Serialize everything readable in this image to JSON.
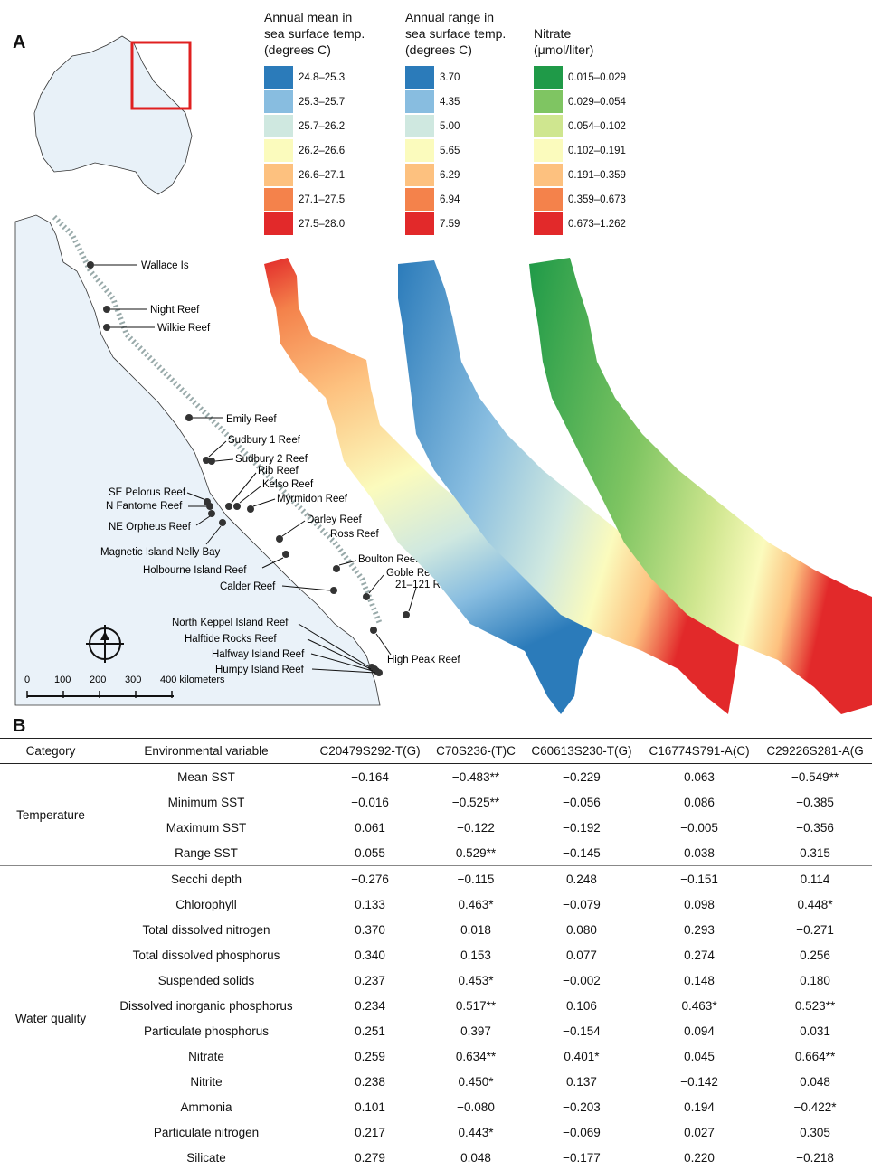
{
  "panel_a": {
    "label": "A",
    "legends": [
      {
        "title": "Annual mean in\nsea surface temp.\n(degrees C)",
        "items": [
          "24.8–25.3",
          "25.3–25.7",
          "25.7–26.2",
          "26.2–26.6",
          "26.6–27.1",
          "27.1–27.5",
          "27.5–28.0"
        ],
        "colors": [
          "#2b7bba",
          "#88bde0",
          "#cfe8e0",
          "#fbfbbd",
          "#fdc17f",
          "#f4824b",
          "#e2292a"
        ]
      },
      {
        "title": "Annual range in\nsea surface temp.\n(degrees C)",
        "items": [
          "3.70",
          "4.35",
          "5.00",
          "5.65",
          "6.29",
          "6.94",
          "7.59"
        ],
        "colors": [
          "#2b7bba",
          "#88bde0",
          "#cfe8e0",
          "#fbfbbd",
          "#fdc17f",
          "#f4824b",
          "#e2292a"
        ]
      },
      {
        "title": "Nitrate\n(μmol/liter)",
        "items": [
          "0.015–0.029",
          "0.029–0.054",
          "0.054–0.102",
          "0.102–0.191",
          "0.191–0.359",
          "0.359–0.673",
          "0.673–1.262"
        ],
        "colors": [
          "#1f9a48",
          "#7fc562",
          "#cfe68f",
          "#fbfbbd",
          "#fdc17f",
          "#f4824b",
          "#e2292a"
        ]
      }
    ],
    "reefs": [
      "Wallace Is",
      "Night Reef",
      "Wilkie Reef",
      "Emily Reef",
      "Sudbury 1 Reef",
      "Sudbury 2 Reef",
      "Rib Reef",
      "Kelso Reef",
      "SE Pelorus Reef",
      "N Fantome Reef",
      "Myrmidon Reef",
      "NE Orpheus Reef",
      "Darley Reef",
      "Ross Reef",
      "Magnetic Island Nelly Bay",
      "Holbourne Island  Reef",
      "Boulton Reef",
      "Goble Reef",
      "Calder Reef",
      "21–121 Reef",
      "North Keppel Island Reef",
      "Halftide Rocks Reef",
      "Halfway Island Reef",
      "Humpy Island Reef",
      "High Peak Reef"
    ],
    "scale": {
      "ticks": [
        "0",
        "100",
        "200",
        "300",
        "400 kilometers"
      ]
    }
  },
  "panel_b": {
    "label": "B",
    "headers": [
      "Category",
      "Environmental variable",
      "C20479S292-T(G)",
      "C70S236-(T)C",
      "C60613S230-T(G)",
      "C16774S791-A(C)",
      "C29226S281-A(G"
    ],
    "groups": [
      {
        "category": "Temperature",
        "rows": [
          [
            "Mean SST",
            "−0.164",
            "−0.483**",
            "−0.229",
            "0.063",
            "−0.549**"
          ],
          [
            "Minimum SST",
            "−0.016",
            "−0.525**",
            "−0.056",
            "0.086",
            "−0.385"
          ],
          [
            "Maximum SST",
            "0.061",
            "−0.122",
            "−0.192",
            "−0.005",
            "−0.356"
          ],
          [
            "Range SST",
            "0.055",
            "0.529**",
            "−0.145",
            "0.038",
            "0.315"
          ]
        ]
      },
      {
        "category": "Water quality",
        "rows": [
          [
            "Secchi depth",
            "−0.276",
            "−0.115",
            "0.248",
            "−0.151",
            "0.114"
          ],
          [
            "Chlorophyll",
            "0.133",
            "0.463*",
            "−0.079",
            "0.098",
            "0.448*"
          ],
          [
            "Total dissolved nitrogen",
            "0.370",
            "0.018",
            "0.080",
            "0.293",
            "−0.271"
          ],
          [
            "Total dissolved phosphorus",
            "0.340",
            "0.153",
            "0.077",
            "0.274",
            "0.256"
          ],
          [
            "Suspended solids",
            "0.237",
            "0.453*",
            "−0.002",
            "0.148",
            "0.180"
          ],
          [
            "Dissolved inorganic phosphorus",
            "0.234",
            "0.517**",
            "0.106",
            "0.463*",
            "0.523**"
          ],
          [
            "Particulate phosphorus",
            "0.251",
            "0.397",
            "−0.154",
            "0.094",
            "0.031"
          ],
          [
            "Nitrate",
            "0.259",
            "0.634**",
            "0.401*",
            "0.045",
            "0.664**"
          ],
          [
            "Nitrite",
            "0.238",
            "0.450*",
            "0.137",
            "−0.142",
            "0.048"
          ],
          [
            "Ammonia",
            "0.101",
            "−0.080",
            "−0.203",
            "0.194",
            "−0.422*"
          ],
          [
            "Particulate nitrogen",
            "0.217",
            "0.443*",
            "−0.069",
            "0.027",
            "0.305"
          ],
          [
            "Silicate",
            "0.279",
            "0.048",
            "−0.177",
            "0.220",
            "−0.218"
          ]
        ]
      }
    ]
  }
}
